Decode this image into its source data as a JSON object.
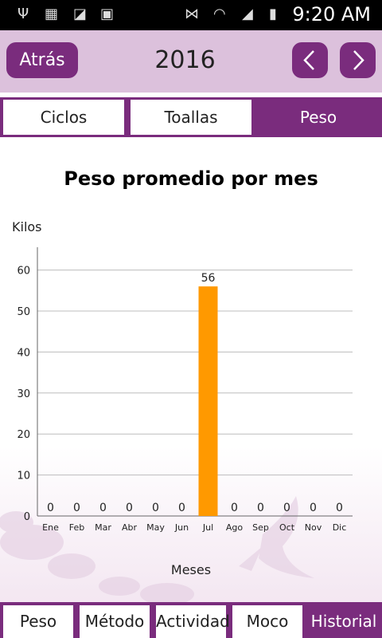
{
  "status_bar": {
    "time": "9:20 AM"
  },
  "header": {
    "back_label": "Atrás",
    "year": "2016"
  },
  "tabs": [
    {
      "label": "Ciclos",
      "active": false
    },
    {
      "label": "Toallas",
      "active": false
    },
    {
      "label": "Peso",
      "active": true
    }
  ],
  "bottom_tabs": [
    {
      "label": "Peso",
      "active": false
    },
    {
      "label": "Método",
      "active": false
    },
    {
      "label": "Actividad",
      "active": false
    },
    {
      "label": "Moco",
      "active": false
    },
    {
      "label": "Historial",
      "active": true
    }
  ],
  "colors": {
    "accent": "#7a2c7d",
    "bar": "#ff9900"
  },
  "chart_data": {
    "type": "bar",
    "title": "Peso promedio por mes",
    "ylabel": "Kilos",
    "xlabel": "Meses",
    "categories": [
      "Ene",
      "Feb",
      "Mar",
      "Abr",
      "May",
      "Jun",
      "Jul",
      "Ago",
      "Sep",
      "Oct",
      "Nov",
      "Dic"
    ],
    "values": [
      0,
      0,
      0,
      0,
      0,
      0,
      56,
      0,
      0,
      0,
      0,
      0
    ],
    "ylim": [
      0,
      64
    ],
    "yticks": [
      0,
      10,
      20,
      30,
      40,
      50,
      60
    ],
    "grid": true
  }
}
